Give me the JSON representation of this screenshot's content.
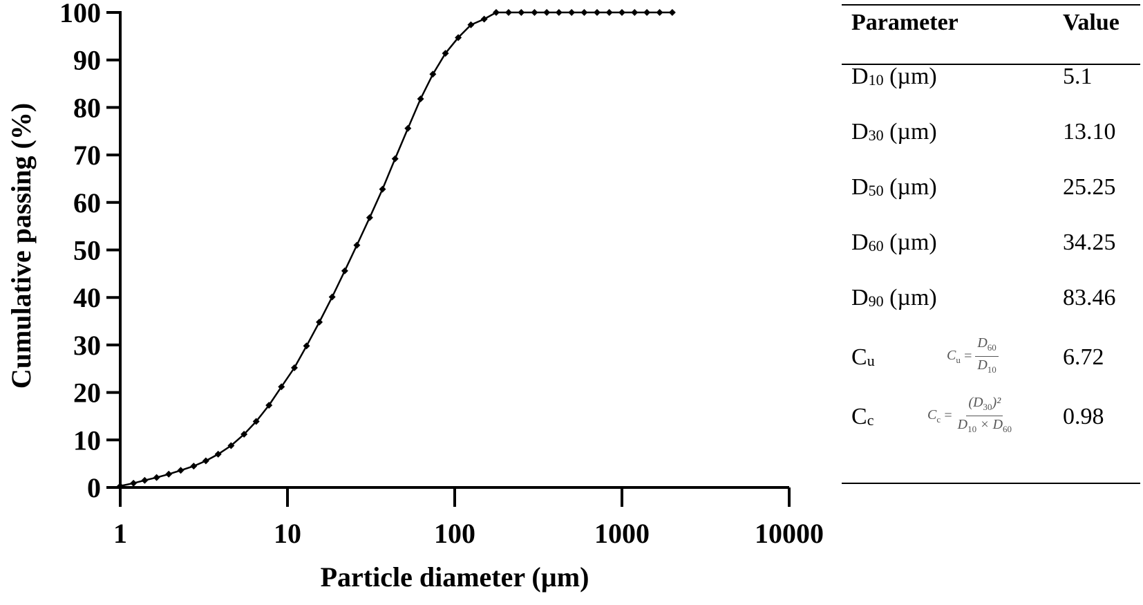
{
  "chart_data": {
    "type": "line",
    "xlabel": "Particle diameter (µm)",
    "ylabel": "Cumulative passing (%)",
    "xscale": "log",
    "xlim": [
      1,
      10000
    ],
    "ylim": [
      0,
      100
    ],
    "x_ticks": [
      "1",
      "10",
      "100",
      "1000",
      "10000"
    ],
    "y_ticks": [
      "0",
      "10",
      "20",
      "30",
      "40",
      "50",
      "60",
      "70",
      "80",
      "90",
      "100"
    ],
    "grid": false,
    "series": [
      {
        "marker": "diamond",
        "color": "#000000",
        "x": [
          1.0,
          1.2,
          1.4,
          1.65,
          1.95,
          2.3,
          2.75,
          3.25,
          3.85,
          4.6,
          5.5,
          6.5,
          7.75,
          9.2,
          11.0,
          13.0,
          15.5,
          18.5,
          22.0,
          26.0,
          31.0,
          37.0,
          44.0,
          52.5,
          62.5,
          74.0,
          88.0,
          105.0,
          125.0,
          150.0,
          177.0,
          210.0,
          250.0,
          300.0,
          355.0,
          420.0,
          500.0,
          595.0,
          710.0,
          840.0,
          1000.0,
          1190.0,
          1410.0,
          1680.0,
          2000.0
        ],
        "y": [
          0.3,
          0.9,
          1.5,
          2.1,
          2.8,
          3.6,
          4.5,
          5.6,
          7.0,
          8.8,
          11.2,
          13.9,
          17.3,
          21.2,
          25.2,
          29.8,
          34.8,
          40.1,
          45.6,
          51.0,
          56.8,
          62.8,
          69.2,
          75.6,
          81.8,
          87.0,
          91.4,
          94.7,
          97.4,
          98.6,
          100,
          100,
          100,
          100,
          100,
          100,
          100,
          100,
          100,
          100,
          100,
          100,
          100,
          100,
          100
        ]
      }
    ]
  },
  "table": {
    "header_param": "Parameter",
    "header_value": "Value",
    "rows": [
      {
        "symbol": "D",
        "sub": "10",
        "unit": " (µm)",
        "value": "5.1"
      },
      {
        "symbol": "D",
        "sub": "30",
        "unit": " (µm)",
        "value": "13.10"
      },
      {
        "symbol": "D",
        "sub": "50",
        "unit": " (µm)",
        "value": "25.25"
      },
      {
        "symbol": "D",
        "sub": "60",
        "unit": " (µm)",
        "value": "34.25"
      },
      {
        "symbol": "D",
        "sub": "90",
        "unit": " (µm)",
        "value": "83.46"
      },
      {
        "symbol": "C",
        "sub": "u",
        "unit": "",
        "value": "6.72"
      },
      {
        "symbol": "C",
        "sub": "c",
        "unit": "",
        "value": "0.98"
      }
    ],
    "formula_cu": {
      "lhs": "C",
      "lhs_sub": "u",
      "eq": "=",
      "num": "D",
      "num_sub": "60",
      "den": "D",
      "den_sub": "10"
    },
    "formula_cc": {
      "lhs": "C",
      "lhs_sub": "c",
      "eq": "=",
      "num": "(D",
      "num_sub": "30",
      "num_tail": ")²",
      "den_a": "D",
      "den_a_sub": "10",
      "times": "×",
      "den_b": "D",
      "den_b_sub": "60"
    }
  }
}
